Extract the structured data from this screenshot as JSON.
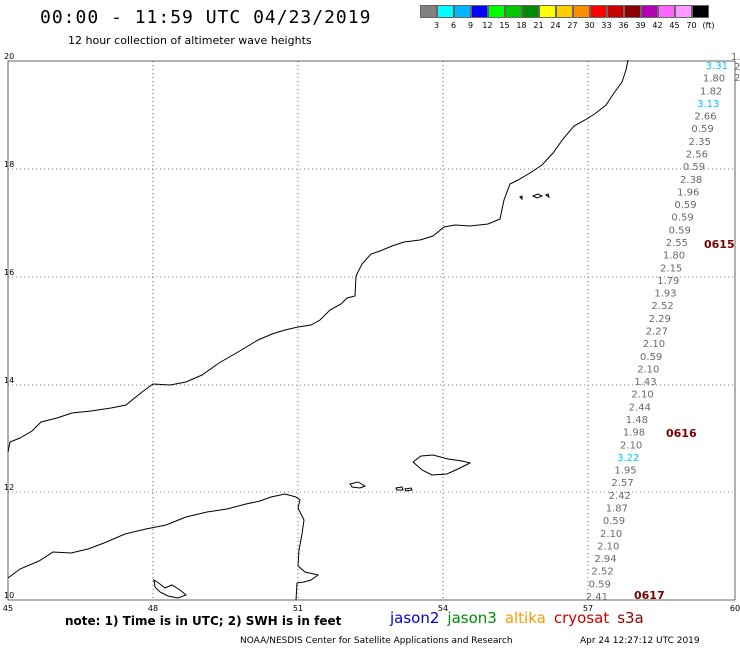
{
  "header": {
    "title": "00:00 - 11:59 UTC 04/23/2019",
    "subtitle": "12 hour collection of altimeter wave heights"
  },
  "legend": {
    "colors": [
      "#808080",
      "#00ffff",
      "#00b4ff",
      "#0000ff",
      "#00ff00",
      "#00c800",
      "#008c00",
      "#ffff00",
      "#ffcc00",
      "#ff8c00",
      "#ff0000",
      "#c80000",
      "#8c0000",
      "#b400b4",
      "#ff66ff",
      "#ff99ff",
      "#000000"
    ],
    "labels": [
      "3",
      "6",
      "9",
      "12",
      "15",
      "18",
      "21",
      "24",
      "27",
      "30",
      "33",
      "36",
      "39",
      "42",
      "45",
      "70",
      "(ft)"
    ]
  },
  "axes": {
    "lon_labels": [
      "45",
      "48",
      "51",
      "54",
      "57",
      "60"
    ],
    "lat_labels": [
      "20",
      "18",
      "16",
      "14",
      "12",
      "10"
    ]
  },
  "swh_track": [
    {
      "value": "3.31",
      "color": "cyan"
    },
    {
      "value": "1.80",
      "color": "gray"
    },
    {
      "value": "1.82",
      "color": "gray"
    },
    {
      "value": "3.13",
      "color": "cyan"
    },
    {
      "value": "2.66",
      "color": "gray"
    },
    {
      "value": "0.59",
      "color": "gray"
    },
    {
      "value": "2.35",
      "color": "gray"
    },
    {
      "value": "2.56",
      "color": "gray"
    },
    {
      "value": "0.59",
      "color": "gray"
    },
    {
      "value": "2.38",
      "color": "gray"
    },
    {
      "value": "1.96",
      "color": "gray"
    },
    {
      "value": "0.59",
      "color": "gray"
    },
    {
      "value": "0.59",
      "color": "gray"
    },
    {
      "value": "0.59",
      "color": "gray"
    },
    {
      "value": "2.55",
      "color": "gray"
    },
    {
      "value": "1.80",
      "color": "gray"
    },
    {
      "value": "2.15",
      "color": "gray"
    },
    {
      "value": "1.79",
      "color": "gray"
    },
    {
      "value": "1.93",
      "color": "gray"
    },
    {
      "value": "2.52",
      "color": "gray"
    },
    {
      "value": "2.29",
      "color": "gray"
    },
    {
      "value": "2.27",
      "color": "gray"
    },
    {
      "value": "2.10",
      "color": "gray"
    },
    {
      "value": "0.59",
      "color": "gray"
    },
    {
      "value": "2.10",
      "color": "gray"
    },
    {
      "value": "1.43",
      "color": "gray"
    },
    {
      "value": "2.10",
      "color": "gray"
    },
    {
      "value": "2.44",
      "color": "gray"
    },
    {
      "value": "1.48",
      "color": "gray"
    },
    {
      "value": "1.98",
      "color": "gray"
    },
    {
      "value": "2.10",
      "color": "gray"
    },
    {
      "value": "3.22",
      "color": "cyan"
    },
    {
      "value": "1.95",
      "color": "gray"
    },
    {
      "value": "2.57",
      "color": "gray"
    },
    {
      "value": "2.42",
      "color": "gray"
    },
    {
      "value": "1.87",
      "color": "gray"
    },
    {
      "value": "0.59",
      "color": "gray"
    },
    {
      "value": "2.10",
      "color": "gray"
    },
    {
      "value": "2.10",
      "color": "gray"
    },
    {
      "value": "2.94",
      "color": "gray"
    },
    {
      "value": "2.52",
      "color": "gray"
    },
    {
      "value": "0.59",
      "color": "gray"
    },
    {
      "value": "2.41",
      "color": "gray"
    }
  ],
  "pass_times": [
    "0615",
    "0616",
    "0617"
  ],
  "edge_fragments": [
    "1.",
    "2.",
    "2"
  ],
  "footer": {
    "note": "note: 1) Time is in UTC; 2) SWH is in feet",
    "satellites": [
      {
        "name": "jason2",
        "color": "#0000cc"
      },
      {
        "name": "jason3",
        "color": "#008c00"
      },
      {
        "name": "altika",
        "color": "#ff9900"
      },
      {
        "name": "cryosat",
        "color": "#cc0000"
      },
      {
        "name": "s3a",
        "color": "#8c0000"
      }
    ],
    "credit": "NOAA/NESDIS Center for Satellite Applications and Research",
    "timestamp": "Apr 24 12:27:12 UTC 2019"
  }
}
